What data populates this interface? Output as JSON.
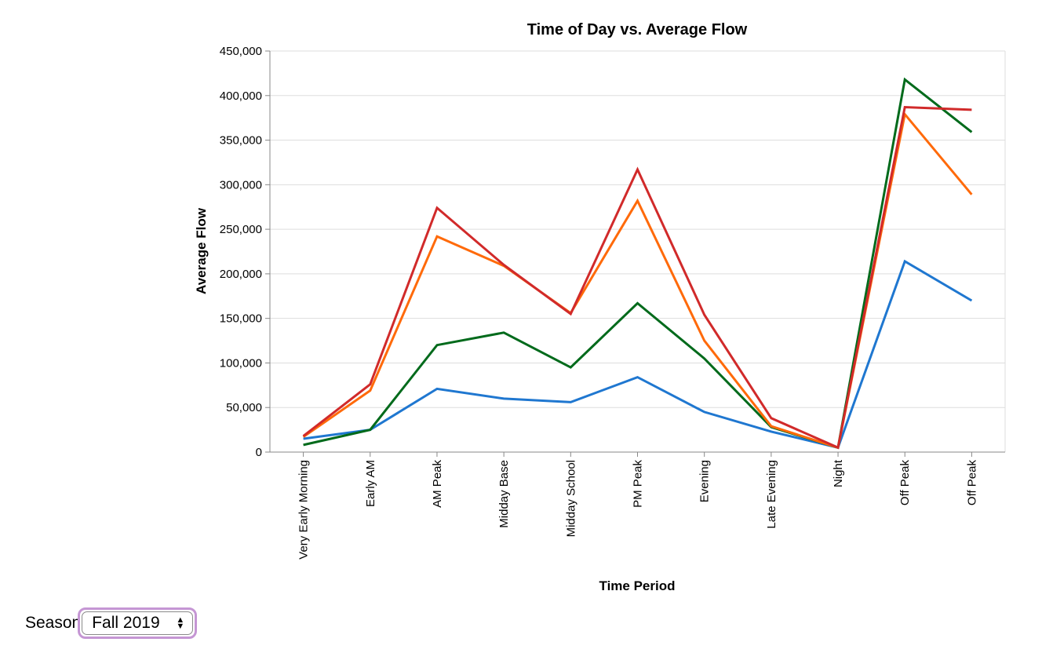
{
  "chart_data": {
    "type": "line",
    "title": "Time of Day vs. Average Flow",
    "xlabel": "Time Period",
    "ylabel": "Average Flow",
    "categories": [
      "Very Early Morning",
      "Early AM",
      "AM Peak",
      "Midday Base",
      "Midday School",
      "PM Peak",
      "Evening",
      "Late Evening",
      "Night",
      "Off Peak",
      "Off Peak"
    ],
    "ylim": [
      0,
      450000
    ],
    "yticks": [
      0,
      50000,
      100000,
      150000,
      200000,
      250000,
      300000,
      350000,
      400000,
      450000
    ],
    "ytick_labels": [
      "0",
      "50,000",
      "100,000",
      "150,000",
      "200,000",
      "250,000",
      "300,000",
      "350,000",
      "400,000",
      "450,000"
    ],
    "grid": true,
    "legend": "none",
    "series": [
      {
        "color": "#1f77d0",
        "values": [
          15000,
          25000,
          71000,
          60000,
          56000,
          84000,
          45000,
          23000,
          5000,
          214000,
          170000
        ]
      },
      {
        "color": "#006a1b",
        "values": [
          8000,
          25000,
          120000,
          134000,
          95000,
          167000,
          105000,
          28000,
          5000,
          418000,
          359000
        ]
      },
      {
        "color": "#ff6a0a",
        "values": [
          17000,
          69000,
          242000,
          209000,
          156000,
          282000,
          125000,
          29000,
          5000,
          379000,
          289000
        ]
      },
      {
        "color": "#d12a2a",
        "values": [
          18000,
          76000,
          274000,
          210000,
          155000,
          317000,
          154000,
          38000,
          5000,
          387000,
          384000
        ]
      }
    ]
  },
  "controls": {
    "season_label": "Season",
    "season_value": "Fall 2019",
    "arrow_up": "▲",
    "arrow_down": "▼"
  }
}
